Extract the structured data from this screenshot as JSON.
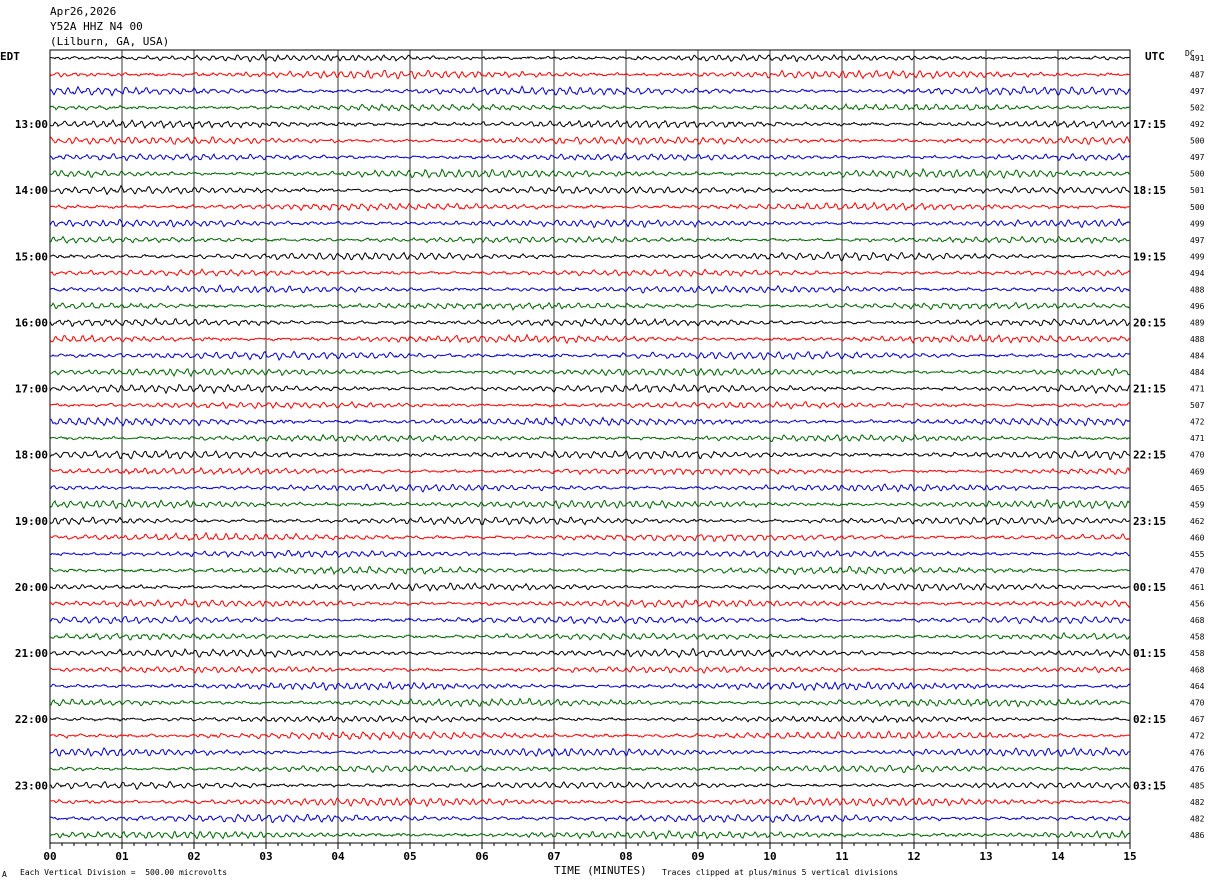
{
  "header": {
    "date": "Apr26,2026",
    "station": "Y52A HHZ N4 00",
    "location": "(Lilburn, GA, USA)"
  },
  "left_timezone": "EDT",
  "right_timezone": "UTC",
  "dc_label": "DC",
  "footer": {
    "scale_note": "Each Vertical Division =  500.00 microvolts",
    "clip_note": "Traces clipped at plus/minus 5 vertical divisions",
    "corner_mark": "A"
  },
  "chart_data": {
    "type": "line",
    "title": "",
    "xlabel": "TIME (MINUTES)",
    "ylabel": "",
    "xlim": [
      0,
      15
    ],
    "x_tick_labels": [
      "00",
      "01",
      "02",
      "03",
      "04",
      "05",
      "06",
      "07",
      "08",
      "09",
      "10",
      "11",
      "12",
      "13",
      "14",
      "15"
    ],
    "trace_count": 48,
    "trace_colors": [
      "#000000",
      "#ff0000",
      "#0000cc",
      "#006600"
    ],
    "left_hour_labels": [
      "13:00",
      "14:00",
      "15:00",
      "16:00",
      "17:00",
      "18:00",
      "19:00",
      "20:00",
      "21:00",
      "22:00",
      "23:00"
    ],
    "right_hour_labels": [
      "17:15",
      "18:15",
      "19:15",
      "20:15",
      "21:15",
      "22:15",
      "23:15",
      "00:15",
      "01:15",
      "02:15",
      "03:15"
    ],
    "dc_offsets": [
      491,
      487,
      497,
      502,
      492,
      500,
      497,
      500,
      501,
      500,
      499,
      497,
      499,
      494,
      488,
      496,
      489,
      488,
      484,
      484,
      471,
      507,
      472,
      471,
      470,
      469,
      465,
      459,
      462,
      460,
      455,
      470,
      461,
      456,
      468,
      458,
      458,
      468,
      464,
      470,
      467,
      472,
      476,
      476,
      485,
      482,
      482,
      486
    ]
  }
}
